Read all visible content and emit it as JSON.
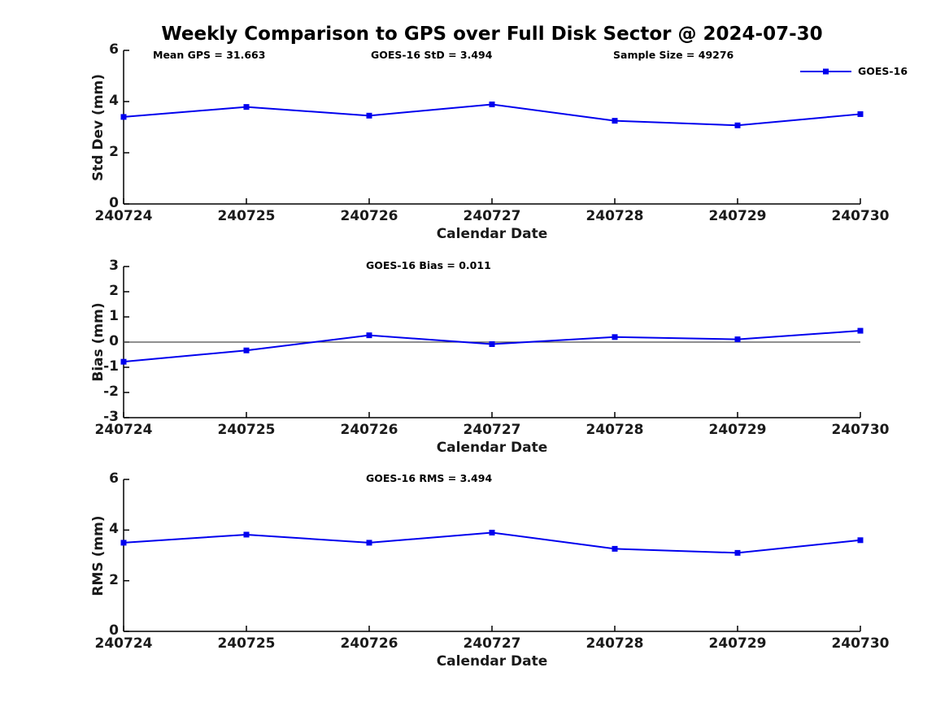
{
  "figure": {
    "title": "Weekly Comparison to GPS over Full Disk Sector @ 2024-07-30",
    "background": "#ffffff"
  },
  "legend": {
    "label": "GOES-16",
    "marker": "filled-square",
    "position": "top-right"
  },
  "colors": {
    "series": "#0000ee",
    "axis": "#000000",
    "tick_label": "#1a1a1a",
    "zero_line": "#4d4d4d",
    "title": "#000000"
  },
  "chart_data": [
    {
      "type": "line",
      "ylabel": "Std Dev (mm)",
      "xlabel": "Calendar Date",
      "categories": [
        "240724",
        "240725",
        "240726",
        "240727",
        "240728",
        "240729",
        "240730"
      ],
      "series": [
        {
          "name": "GOES-16",
          "values": [
            3.4,
            3.79,
            3.45,
            3.89,
            3.25,
            3.07,
            3.51
          ]
        }
      ],
      "ylim": [
        0,
        6
      ],
      "yticks": [
        0,
        2,
        4,
        6
      ],
      "grid": false,
      "zero_line": false,
      "annotations": [
        {
          "text": "Mean GPS = 31.663"
        },
        {
          "text": "GOES-16 StD = 3.494"
        },
        {
          "text": "Sample Size = 49276"
        }
      ]
    },
    {
      "type": "line",
      "ylabel": "Bias (mm)",
      "xlabel": "Calendar Date",
      "categories": [
        "240724",
        "240725",
        "240726",
        "240727",
        "240728",
        "240729",
        "240730"
      ],
      "series": [
        {
          "name": "GOES-16",
          "values": [
            -0.78,
            -0.33,
            0.27,
            -0.08,
            0.2,
            0.11,
            0.45
          ]
        }
      ],
      "ylim": [
        -3,
        3
      ],
      "yticks": [
        -3,
        -2,
        -1,
        0,
        1,
        2,
        3
      ],
      "grid": false,
      "zero_line": true,
      "annotations": [
        {
          "text": "GOES-16 Bias  = 0.011"
        }
      ]
    },
    {
      "type": "line",
      "ylabel": "RMS (mm)",
      "xlabel": "Calendar Date",
      "categories": [
        "240724",
        "240725",
        "240726",
        "240727",
        "240728",
        "240729",
        "240730"
      ],
      "series": [
        {
          "name": "GOES-16",
          "values": [
            3.5,
            3.82,
            3.5,
            3.9,
            3.26,
            3.1,
            3.6
          ]
        }
      ],
      "ylim": [
        0,
        6
      ],
      "yticks": [
        0,
        2,
        4,
        6
      ],
      "grid": false,
      "zero_line": false,
      "annotations": [
        {
          "text": "GOES-16 RMS = 3.494"
        }
      ]
    }
  ]
}
